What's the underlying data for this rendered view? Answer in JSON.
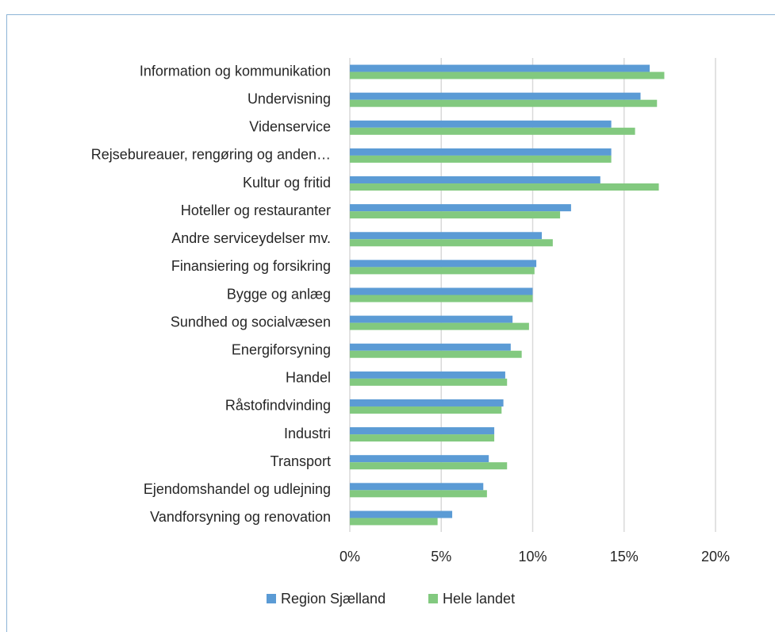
{
  "chart_data": {
    "type": "hbar",
    "categories": [
      "Information og kommunikation",
      "Undervisning",
      "Videnservice",
      "Rejsebureauer, rengøring og anden…",
      "Kultur og fritid",
      "Hoteller og restauranter",
      "Andre serviceydelser  mv.",
      "Finansiering og forsikring",
      "Bygge og anlæg",
      "Sundhed og socialvæsen",
      "Energiforsyning",
      "Handel",
      "Råstofindvinding",
      "Industri",
      "Transport",
      "Ejendomshandel og udlejning",
      "Vandforsyning og renovation"
    ],
    "series": [
      {
        "name": "Region Sjælland",
        "color": "#5b9bd5",
        "values": [
          16.4,
          15.9,
          14.3,
          14.3,
          13.7,
          12.1,
          10.5,
          10.2,
          10.0,
          8.9,
          8.8,
          8.5,
          8.4,
          7.9,
          7.6,
          7.3,
          5.6
        ]
      },
      {
        "name": "Hele landet",
        "color": "#82c97f",
        "values": [
          17.2,
          16.8,
          15.6,
          14.3,
          16.9,
          11.5,
          11.1,
          10.1,
          10.0,
          9.8,
          9.4,
          8.6,
          8.3,
          7.9,
          8.6,
          7.5,
          4.8
        ]
      }
    ],
    "xlim": [
      0,
      20
    ],
    "xticks": [
      {
        "value": 0,
        "label": "0%"
      },
      {
        "value": 5,
        "label": "5%"
      },
      {
        "value": 10,
        "label": "10%"
      },
      {
        "value": 15,
        "label": "15%"
      },
      {
        "value": 20,
        "label": "20%"
      }
    ],
    "grid": true,
    "legend": "bottom"
  }
}
